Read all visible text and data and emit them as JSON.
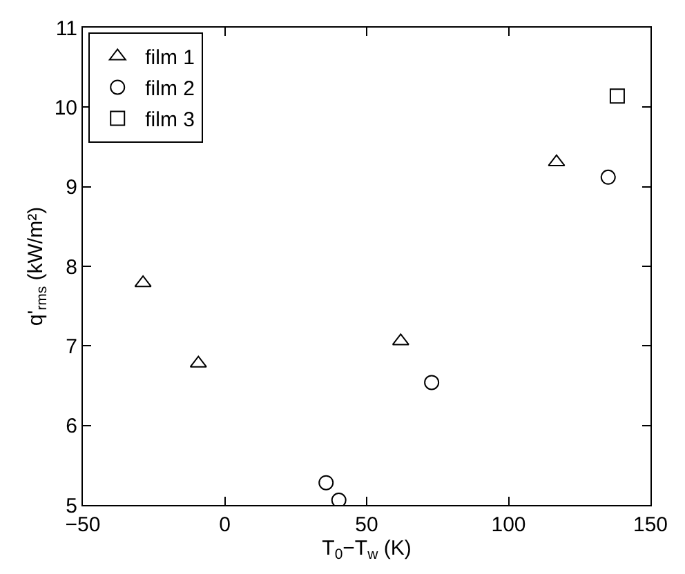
{
  "chart_data": {
    "type": "scatter",
    "xlabel": "T$_{0}$−T$_{w}$ (K)",
    "ylabel": "q'$_{rms}$ (kW/m²)",
    "xlim": [
      -50,
      150
    ],
    "xticks": [
      {
        "value": -50,
        "label": "−50"
      },
      0,
      50,
      100,
      150
    ],
    "ylim": [
      5,
      11
    ],
    "yticks": [
      5,
      6,
      7,
      8,
      9,
      10,
      11
    ],
    "legend": "top left",
    "series": [
      {
        "name": "film 1",
        "color": "#000000",
        "marker": "triangle",
        "x": [
          -28.8,
          -9.3,
          62.0,
          116.9
        ],
        "values": [
          7.79,
          6.78,
          7.06,
          9.31
        ]
      },
      {
        "name": "film 2",
        "color": "#000000",
        "marker": "circle",
        "x": [
          35.7,
          40.2,
          72.9,
          135.1
        ],
        "values": [
          5.28,
          5.06,
          6.54,
          9.12
        ]
      },
      {
        "name": "film 3",
        "color": "#000000",
        "marker": "square",
        "x": [
          138.3
        ],
        "values": [
          10.14
        ]
      }
    ]
  }
}
